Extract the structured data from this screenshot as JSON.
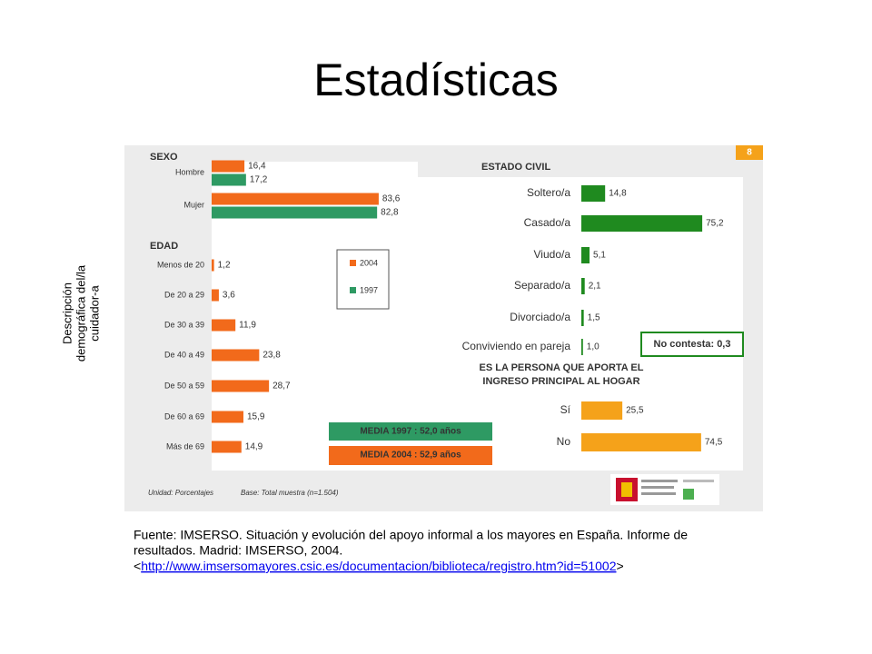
{
  "slide": {
    "title": "Estadísticas",
    "side_label": [
      "Descripción",
      "demográfica del/la",
      "cuidador-a"
    ],
    "page_number": "8",
    "footer": [
      "Unidad: Porcentajes",
      "Base: Total muestra (n=1.504)"
    ],
    "source": {
      "lines": [
        "Fuente: IMSERSO. Situación y evolución del apoyo informal a los mayores en España. Informe de",
        "resultados. Madrid: IMSERSO, 2004."
      ],
      "url_prefix": "<",
      "url": "http://www.imsersomayores.csic.es/documentacion/biblioteca/registro.htm?id=51002",
      "url_suffix": ">"
    }
  },
  "chart_data": [
    {
      "type": "bar",
      "title": "SEXO",
      "categories": [
        "Hombre",
        "Mujer"
      ],
      "series": [
        {
          "name": "2004",
          "color": "#f26a1b",
          "values": [
            16.4,
            83.6
          ],
          "value_labels": [
            "16,4",
            "83,6"
          ]
        },
        {
          "name": "1997",
          "color": "#2e9a63",
          "values": [
            17.2,
            82.8
          ],
          "value_labels": [
            "17,2",
            "82,8"
          ]
        }
      ]
    },
    {
      "type": "bar",
      "title": "EDAD",
      "categories": [
        "Menos de 20",
        "De 20 a 29",
        "De 30 a 39",
        "De 40 a 49",
        "De 50 a 59",
        "De 60 a 69",
        "Más de 69"
      ],
      "color": "#f26a1b",
      "values": [
        1.2,
        3.6,
        11.9,
        23.8,
        28.7,
        15.9,
        14.9
      ],
      "value_labels": [
        "1,2",
        "3,6",
        "11,9",
        "23,8",
        "28,7",
        "15,9",
        "14,9"
      ],
      "annotations": [
        "MEDIA 1997 : 52,0 años",
        "MEDIA 2004 : 52,9 años"
      ]
    },
    {
      "type": "bar",
      "title": "ESTADO CIVIL",
      "categories": [
        "Soltero/a",
        "Casado/a",
        "Viudo/a",
        "Separado/a",
        "Divorciado/a",
        "Conviviendo en pareja"
      ],
      "color": "#1f8a1f",
      "values": [
        14.8,
        75.2,
        5.1,
        2.1,
        1.5,
        1.0
      ],
      "value_labels": [
        "14,8",
        "75,2",
        "5,1",
        "2,1",
        "1,5",
        "1,0"
      ],
      "annotations": [
        "No contesta: 0,3"
      ]
    },
    {
      "type": "bar",
      "title": [
        "ES LA PERSONA QUE APORTA EL",
        "INGRESO PRINCIPAL AL HOGAR"
      ],
      "categories": [
        "Sí",
        "No"
      ],
      "color": "#f5a21a",
      "values": [
        25.5,
        74.5
      ],
      "value_labels": [
        "25,5",
        "74,5"
      ]
    }
  ]
}
